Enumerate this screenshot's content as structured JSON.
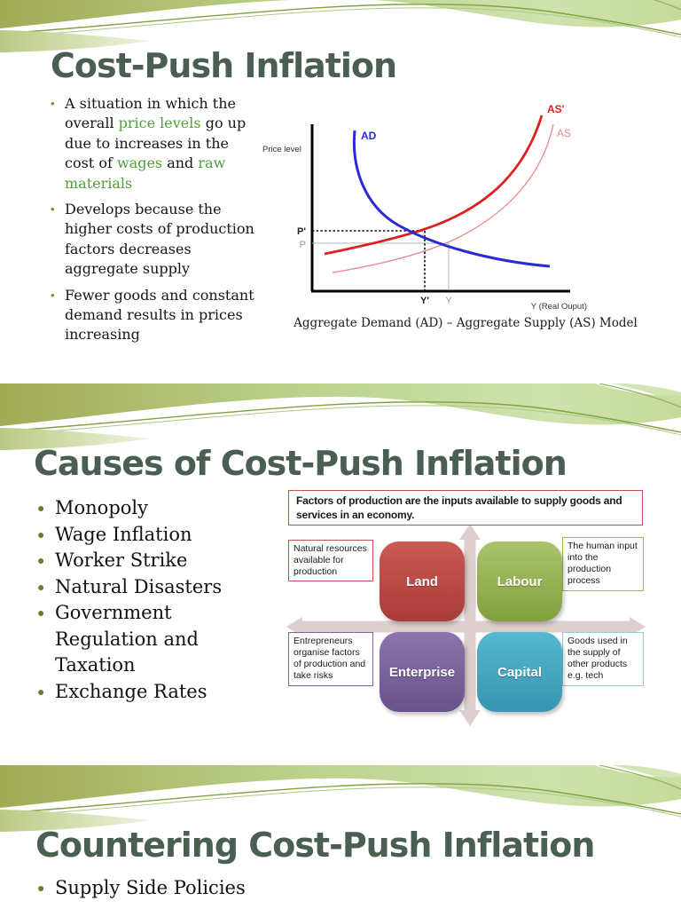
{
  "slide1": {
    "title": "Cost-Push Inflation",
    "bullets": [
      {
        "segments": [
          [
            "A situation in which the overall ",
            "dark"
          ],
          [
            "price levels",
            "green"
          ],
          [
            " go up due to increases in the cost of ",
            "dark"
          ],
          [
            "wages",
            "green"
          ],
          [
            " and ",
            "dark"
          ],
          [
            "raw materials",
            "green"
          ]
        ]
      },
      {
        "segments": [
          [
            "Develops because the higher costs of production factors decreases aggregate supply",
            "dark"
          ]
        ]
      },
      {
        "segments": [
          [
            "Fewer goods and constant demand results in prices increasing",
            "dark"
          ]
        ]
      }
    ],
    "figure": {
      "type": "line",
      "y_axis_label": "Price level",
      "x_axis_label": "Y (Real Ouput)",
      "curves": [
        {
          "name": "AD",
          "color": "#2b2bd5",
          "description": "aggregate demand, downward sloping"
        },
        {
          "name": "AS'",
          "color": "#dd1f1f",
          "description": "shifted aggregate supply, bold, upward sloping"
        },
        {
          "name": "AS",
          "color": "#e98a8a",
          "description": "original aggregate supply, thin, upward sloping"
        }
      ],
      "price_labels": [
        "P'",
        "P"
      ],
      "output_labels": [
        "Y'",
        "Y"
      ],
      "caption": "Aggregate Demand (AD) – Aggregate Supply (AS) Model"
    }
  },
  "slide2": {
    "title": "Causes of Cost-Push Inflation",
    "bullets": [
      "Monopoly",
      "Wage Inflation",
      "Worker Strike",
      "Natural Disasters",
      "Government Regulation and Taxation",
      "Exchange Rates"
    ],
    "diagram": {
      "definition": "Factors of production are the inputs available to supply goods and services in an economy.",
      "quadrants": [
        {
          "label": "Land",
          "color": "#c0504d",
          "callout": "Natural resources available for production"
        },
        {
          "label": "Labour",
          "color": "#9bbb59",
          "callout": "The human input into the production process"
        },
        {
          "label": "Enterprise",
          "color": "#8064a2",
          "callout": "Entrepreneurs organise factors of production and take risks"
        },
        {
          "label": "Capital",
          "color": "#4bacc6",
          "callout": "Goods used in the supply of other products e.g. tech"
        }
      ]
    }
  },
  "slide3": {
    "title": "Countering Cost-Push Inflation",
    "bullets": [
      "Supply Side Policies"
    ]
  },
  "colors": {
    "title": "#4a5e52",
    "accent_green_text": "#4f9f38",
    "bullet_olive": "#6d7c2b",
    "wave_olive": "#a2aa54",
    "wave_light_green": "#cfe2ae"
  }
}
